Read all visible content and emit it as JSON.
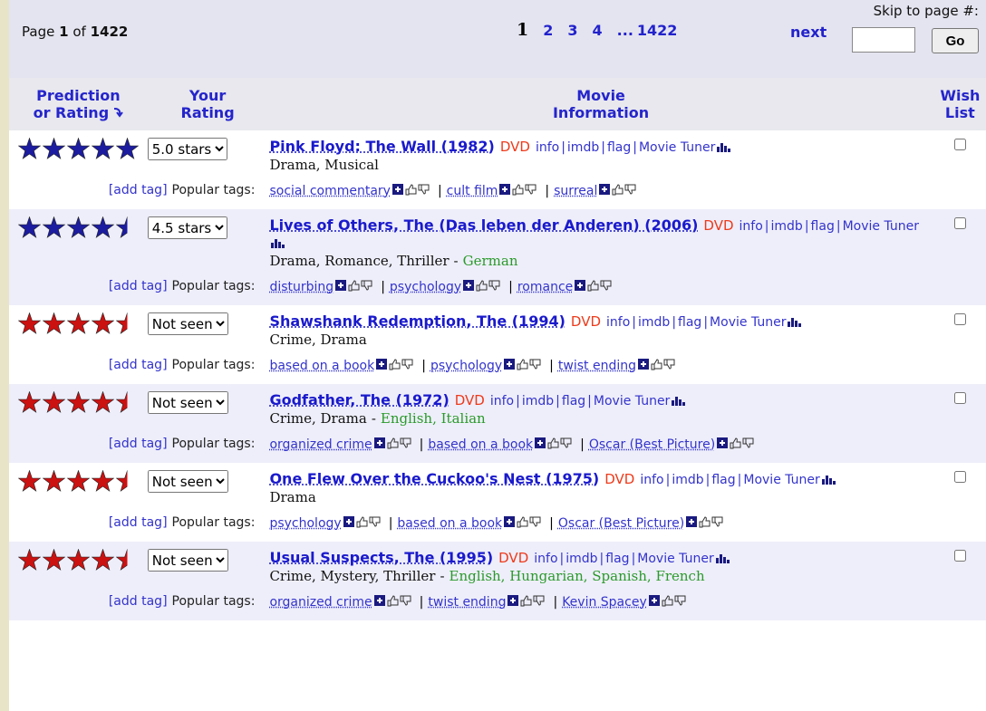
{
  "pager": {
    "page_label": "Page",
    "page": "1",
    "of_label": "of",
    "total": "1422",
    "pages": [
      "1",
      "2",
      "3",
      "4"
    ],
    "ellipsis": "...",
    "last": "1422",
    "next": "next",
    "skip_label": "Skip to page #:",
    "go": "Go"
  },
  "columns": [
    [
      "Prediction",
      "or Rating"
    ],
    [
      "Your",
      "Rating"
    ],
    [
      "Movie",
      "Information"
    ],
    [
      "Wish",
      "List"
    ]
  ],
  "add_tag": "[add tag]",
  "popular_tags": "Popular tags:",
  "link_sep": "|",
  "tag_sep": "|",
  "lang_sep": "-",
  "rows": [
    {
      "stars": 5,
      "star_color": "#1c1ca0",
      "rating": "5.0 stars",
      "title": "Pink Floyd: The Wall (1982)",
      "format": "DVD",
      "links": [
        "info",
        "imdb",
        "flag",
        "Movie Tuner"
      ],
      "genres": "Drama, Musical",
      "tags": [
        "social commentary",
        "cult film",
        "surreal"
      ]
    },
    {
      "stars": 4.5,
      "star_color": "#1c1ca0",
      "rating": "4.5 stars",
      "title": "Lives of Others, The (Das leben der Anderen) (2006)",
      "format": "DVD",
      "links": [
        "info",
        "imdb",
        "flag",
        "Movie Tuner"
      ],
      "genres": "Drama, Romance, Thriller",
      "languages": "German",
      "tags": [
        "disturbing",
        "psychology",
        "romance"
      ]
    },
    {
      "stars": 4.5,
      "star_color": "#cc1111",
      "rating": "Not seen",
      "title": "Shawshank Redemption, The (1994)",
      "format": "DVD",
      "links": [
        "info",
        "imdb",
        "flag",
        "Movie Tuner"
      ],
      "genres": "Crime, Drama",
      "tags": [
        "based on a book",
        "psychology",
        "twist ending"
      ]
    },
    {
      "stars": 4.5,
      "star_color": "#cc1111",
      "rating": "Not seen",
      "title": "Godfather, The (1972)",
      "format": "DVD",
      "links": [
        "info",
        "imdb",
        "flag",
        "Movie Tuner"
      ],
      "genres": "Crime, Drama",
      "languages": "English, Italian",
      "tags": [
        "organized crime",
        "based on a book",
        "Oscar (Best Picture)"
      ]
    },
    {
      "stars": 4.5,
      "star_color": "#cc1111",
      "rating": "Not seen",
      "title": "One Flew Over the Cuckoo's Nest (1975)",
      "format": "DVD",
      "links": [
        "info",
        "imdb",
        "flag",
        "Movie Tuner"
      ],
      "genres": "Drama",
      "tags": [
        "psychology",
        "based on a book",
        "Oscar (Best Picture)"
      ]
    },
    {
      "stars": 4.5,
      "star_color": "#cc1111",
      "rating": "Not seen",
      "title": "Usual Suspects, The (1995)",
      "format": "DVD",
      "links": [
        "info",
        "imdb",
        "flag",
        "Movie Tuner"
      ],
      "genres": "Crime, Mystery, Thriller",
      "languages": "English, Hungarian, Spanish, French",
      "tags": [
        "organized crime",
        "twist ending",
        "Kevin Spacey"
      ]
    }
  ]
}
